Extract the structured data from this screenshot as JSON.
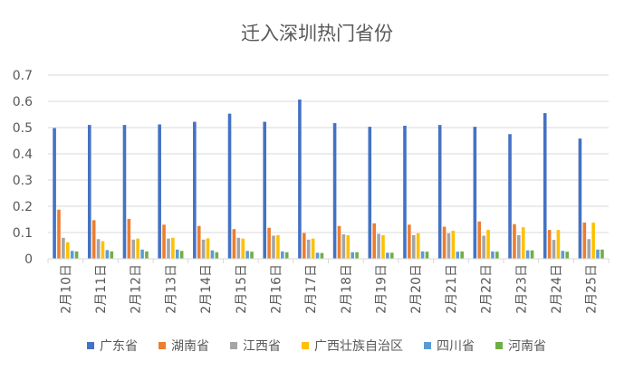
{
  "chart_data": {
    "type": "bar",
    "title": "迁入深圳热门省份",
    "xlabel": "",
    "ylabel": "",
    "ylim": [
      0,
      0.7
    ],
    "yticks": [
      "0",
      "0.1",
      "0.2",
      "0.3",
      "0.4",
      "0.5",
      "0.6",
      "0.7"
    ],
    "grid": true,
    "legend_position": "bottom",
    "categories": [
      "2月10日",
      "2月11日",
      "2月12日",
      "2月13日",
      "2月14日",
      "2月15日",
      "2月16日",
      "2月17日",
      "2月18日",
      "2月19日",
      "2月20日",
      "2月21日",
      "2月22日",
      "2月23日",
      "2月24日",
      "2月25日"
    ],
    "series": [
      {
        "name": "广东省",
        "color": "#4472C4",
        "values": [
          0.498,
          0.51,
          0.51,
          0.512,
          0.522,
          0.553,
          0.522,
          0.607,
          0.517,
          0.503,
          0.507,
          0.51,
          0.503,
          0.475,
          0.555,
          0.458
        ]
      },
      {
        "name": "湖南省",
        "color": "#ED7D31",
        "values": [
          0.187,
          0.147,
          0.152,
          0.13,
          0.125,
          0.113,
          0.118,
          0.098,
          0.125,
          0.135,
          0.13,
          0.122,
          0.142,
          0.132,
          0.11,
          0.138
        ]
      },
      {
        "name": "江西省",
        "color": "#A5A5A5",
        "values": [
          0.08,
          0.075,
          0.073,
          0.077,
          0.073,
          0.08,
          0.088,
          0.073,
          0.093,
          0.095,
          0.09,
          0.097,
          0.088,
          0.09,
          0.072,
          0.075
        ]
      },
      {
        "name": "广西壮族自治区",
        "color": "#FFC000",
        "values": [
          0.063,
          0.067,
          0.077,
          0.08,
          0.078,
          0.077,
          0.09,
          0.077,
          0.09,
          0.09,
          0.097,
          0.107,
          0.11,
          0.12,
          0.11,
          0.138
        ]
      },
      {
        "name": "四川省",
        "color": "#5B9BD5",
        "values": [
          0.03,
          0.033,
          0.035,
          0.035,
          0.032,
          0.03,
          0.028,
          0.023,
          0.025,
          0.023,
          0.028,
          0.027,
          0.028,
          0.032,
          0.03,
          0.035
        ]
      },
      {
        "name": "河南省",
        "color": "#70AD47",
        "values": [
          0.028,
          0.028,
          0.028,
          0.03,
          0.025,
          0.027,
          0.025,
          0.022,
          0.025,
          0.023,
          0.027,
          0.028,
          0.027,
          0.032,
          0.027,
          0.035
        ]
      }
    ]
  }
}
